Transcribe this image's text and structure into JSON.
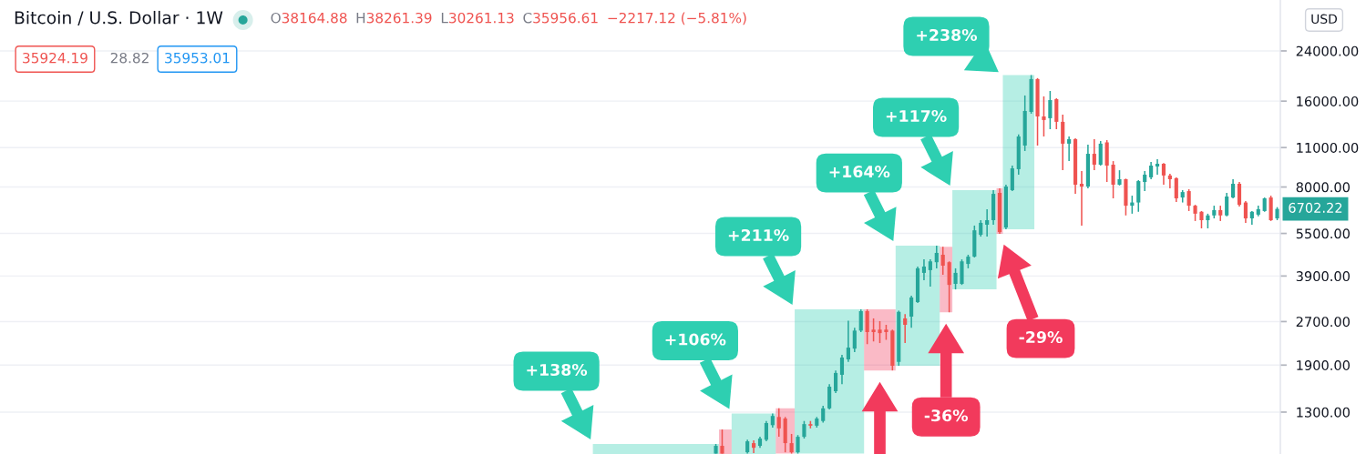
{
  "chart_data": {
    "type": "candlestick",
    "title": "Bitcoin / U.S. Dollar · 1W",
    "annotations": [
      "O38164.88",
      "H38261.39",
      "L30261.13",
      "C35956.61",
      "−2217.12 (−5.81%)",
      "35924.19",
      "28.82",
      "35953.01",
      "USD",
      "6702.22",
      "+138%",
      "+106%",
      "+211%",
      "+164%",
      "-36%",
      "+117%",
      "-29%",
      "+238%"
    ],
    "categories": [
      null,
      null,
      null,
      null,
      null,
      null,
      null,
      null,
      null,
      null,
      null,
      null,
      null,
      null,
      null,
      null,
      null,
      null,
      null,
      null,
      null,
      null,
      null,
      null,
      null,
      null,
      null,
      null,
      null,
      null,
      null,
      null,
      null,
      null,
      null,
      null,
      null,
      null,
      null,
      null,
      null,
      null,
      null,
      null,
      null,
      null,
      null,
      null,
      null,
      null,
      null,
      null,
      null,
      null,
      null,
      null,
      null,
      null,
      null,
      null,
      null,
      null,
      null,
      null,
      null,
      null,
      null,
      null,
      null,
      null,
      null,
      null,
      null,
      null,
      null,
      null,
      null,
      null,
      null,
      null,
      null,
      null,
      null,
      null,
      null,
      null,
      null,
      null,
      null,
      null,
      null,
      null,
      null,
      null,
      null,
      null,
      null,
      null,
      null,
      null,
      null,
      null,
      null,
      null,
      null,
      null,
      null,
      null,
      null,
      null,
      null,
      null,
      null,
      null,
      null,
      null,
      null,
      null,
      null,
      null,
      null,
      null,
      null,
      null,
      null,
      null,
      null,
      null,
      null,
      null,
      null,
      null,
      null,
      null,
      null,
      null,
      null,
      null,
      null,
      null,
      null,
      null,
      null,
      null,
      null,
      null,
      null,
      null,
      null,
      null,
      null,
      null,
      null,
      null,
      null,
      null,
      null,
      null,
      null,
      null,
      null,
      null,
      null,
      null,
      null,
      null,
      null,
      null,
      null,
      null,
      null,
      null,
      null,
      null,
      null,
      null,
      null,
      null,
      null,
      null,
      null,
      null,
      null,
      null,
      null,
      null,
      null,
      null,
      null,
      null,
      null,
      null,
      null,
      null,
      null,
      null,
      null,
      null,
      null,
      null,
      null,
      null,
      null
    ],
    "ohlc": [
      null,
      null,
      null,
      null,
      null,
      null,
      null,
      null,
      null,
      null,
      null,
      null,
      null,
      null,
      null,
      null,
      null,
      null,
      null,
      null,
      null,
      null,
      null,
      null,
      null,
      null,
      null,
      null,
      null,
      null,
      null,
      null,
      null,
      null,
      null,
      null,
      null,
      null,
      null,
      null,
      null,
      null,
      null,
      null,
      null,
      null,
      null,
      null,
      null,
      null,
      null,
      null,
      null,
      null,
      null,
      null,
      null,
      null,
      null,
      null,
      null,
      null,
      null,
      null,
      null,
      null,
      null,
      null,
      null,
      null,
      null,
      null,
      null,
      null,
      null,
      null,
      null,
      null,
      null,
      null,
      null,
      null,
      null,
      null,
      null,
      null,
      null,
      null,
      null,
      null,
      null,
      null,
      null,
      null,
      null,
      null,
      null,
      null,
      null,
      null,
      null,
      null,
      null,
      null,
      null,
      null,
      null,
      null,
      null,
      null,
      null,
      null,
      null,
      [
        930,
        1005,
        930,
        990
      ],
      [
        990,
        1130,
        930,
        930
      ],
      null,
      null,
      null,
      [
        940,
        1040,
        930,
        1027
      ],
      [
        1012,
        1035,
        933,
        975
      ],
      [
        990,
        1065,
        975,
        1050
      ],
      [
        1040,
        1210,
        1027,
        1190
      ],
      [
        1170,
        1285,
        1147,
        1260
      ],
      [
        1250,
        1340,
        1065,
        1140
      ],
      [
        1234,
        1250,
        940,
        1012
      ],
      [
        1012,
        1090,
        930,
        940
      ],
      [
        940,
        1080,
        930,
        1065
      ],
      [
        1065,
        1210,
        1050,
        1180
      ],
      [
        1180,
        1210,
        1140,
        1165
      ],
      [
        1165,
        1250,
        1147,
        1234
      ],
      [
        1210,
        1368,
        1195,
        1340
      ],
      [
        1340,
        1630,
        1328,
        1596
      ],
      [
        1539,
        1820,
        1517,
        1783
      ],
      [
        1757,
        2065,
        1630,
        2020
      ],
      [
        1990,
        2720,
        1950,
        2188
      ],
      [
        2170,
        2570,
        2110,
        2510
      ],
      [
        2510,
        2980,
        2480,
        2937
      ],
      [
        2937,
        2980,
        2250,
        2480
      ],
      [
        2530,
        2770,
        2300,
        2480
      ],
      [
        2530,
        2710,
        2270,
        2460
      ],
      [
        2530,
        2630,
        2330,
        2480
      ],
      [
        2510,
        2530,
        1820,
        1890
      ],
      [
        1950,
        2950,
        1890,
        2920
      ],
      [
        2770,
        2870,
        2270,
        2630
      ],
      [
        2810,
        3330,
        2570,
        3280
      ],
      [
        3160,
        4210,
        3140,
        4150
      ],
      [
        4000,
        4460,
        3770,
        4210
      ],
      [
        4090,
        4460,
        3580,
        4390
      ],
      [
        4360,
        4980,
        4150,
        4700
      ],
      [
        4630,
        4940,
        3940,
        4240
      ],
      [
        4360,
        4390,
        2910,
        3630
      ],
      [
        3660,
        4150,
        3500,
        4000
      ],
      [
        3660,
        4460,
        3630,
        4390
      ],
      [
        4300,
        4630,
        4150,
        4560
      ],
      [
        4560,
        5860,
        4530,
        5640
      ],
      [
        5440,
        6120,
        5360,
        5990
      ],
      [
        5900,
        6690,
        5360,
        6120
      ],
      [
        6120,
        7800,
        5900,
        7570
      ],
      [
        7630,
        7920,
        5480,
        5560
      ],
      [
        5770,
        8150,
        5690,
        8030
      ],
      [
        7800,
        9510,
        7740,
        9300
      ],
      [
        9240,
        12230,
        8840,
        12030
      ],
      [
        11180,
        16750,
        10700,
        14780
      ],
      [
        14670,
        19750,
        14460,
        19120
      ],
      [
        19120,
        19270,
        11180,
        14140
      ],
      [
        14140,
        16630,
        12030,
        13740
      ],
      [
        13940,
        17370,
        12760,
        16140
      ],
      [
        16260,
        16380,
        12760,
        13540
      ],
      [
        13540,
        14350,
        9160,
        11350
      ],
      [
        11350,
        12030,
        9860,
        11770
      ],
      [
        11770,
        11850,
        7570,
        8150
      ],
      [
        8210,
        9100,
        5860,
        8030
      ],
      [
        8030,
        11260,
        7920,
        10460
      ],
      [
        10460,
        11770,
        9160,
        9580
      ],
      [
        9580,
        11600,
        9510,
        11350
      ],
      [
        11470,
        11680,
        8330,
        9510
      ],
      [
        9580,
        9860,
        7300,
        8150
      ],
      [
        8150,
        9160,
        8100,
        8520
      ],
      [
        8520,
        8560,
        6360,
        6880
      ],
      [
        6880,
        7460,
        6450,
        7060
      ],
      [
        7060,
        8460,
        6550,
        8390
      ],
      [
        8330,
        9100,
        7740,
        8840
      ],
      [
        8650,
        9790,
        8520,
        9510
      ],
      [
        9440,
        10010,
        8840,
        9650
      ],
      [
        9650,
        9700,
        8150,
        8780
      ],
      [
        8780,
        8910,
        7920,
        8520
      ],
      [
        8590,
        8650,
        7090,
        7300
      ],
      [
        7350,
        7800,
        7060,
        7680
      ],
      [
        7740,
        7860,
        6590,
        6880
      ],
      [
        6880,
        6930,
        6080,
        6450
      ],
      [
        6550,
        6590,
        5730,
        6120
      ],
      [
        6120,
        6450,
        5730,
        6360
      ],
      [
        6360,
        6880,
        6210,
        6640
      ],
      [
        6640,
        6880,
        6080,
        6360
      ],
      [
        6360,
        7630,
        6310,
        7410
      ],
      [
        7350,
        8520,
        7300,
        8210
      ],
      [
        8210,
        8330,
        6830,
        6930
      ],
      [
        7060,
        7140,
        5990,
        6210
      ],
      [
        6210,
        6590,
        5900,
        6550
      ],
      [
        6400,
        6880,
        6310,
        6690
      ],
      [
        6590,
        7350,
        6550,
        7300
      ],
      [
        7350,
        7460,
        6080,
        6120
      ],
      [
        6210,
        6800,
        6120,
        6702.22
      ]
    ],
    "colors": [
      null,
      null,
      null,
      null,
      null,
      null,
      null,
      null,
      null,
      null,
      null,
      null,
      null,
      null,
      null,
      null,
      null,
      null,
      null,
      null,
      null,
      null,
      null,
      null,
      null,
      null,
      null,
      null,
      null,
      null,
      null,
      null,
      null,
      null,
      null,
      null,
      null,
      null,
      null,
      null,
      null,
      null,
      null,
      null,
      null,
      null,
      null,
      null,
      null,
      null,
      null,
      null,
      null,
      null,
      null,
      null,
      null,
      null,
      null,
      null,
      null,
      null,
      null,
      null,
      null,
      null,
      null,
      null,
      null,
      null,
      null,
      null,
      null,
      null,
      null,
      null,
      null,
      null,
      null,
      null,
      null,
      null,
      null,
      null,
      null,
      null,
      null,
      null,
      null,
      null,
      null,
      null,
      null,
      null,
      null,
      null,
      null,
      null,
      null,
      null,
      null,
      null,
      null,
      null,
      null,
      null,
      null,
      null,
      null,
      null,
      null,
      null,
      null,
      "#26a69a",
      "#ef5350",
      null,
      null,
      null,
      "#26a69a",
      "#ef5350",
      "#26a69a",
      "#26a69a",
      "#26a69a",
      "#ef5350",
      "#ef5350",
      "#ef5350",
      "#26a69a",
      "#26a69a",
      "#ef5350",
      "#26a69a",
      "#26a69a",
      "#26a69a",
      "#26a69a",
      "#26a69a",
      "#26a69a",
      "#26a69a",
      "#26a69a",
      "#ef5350",
      "#ef5350",
      "#ef5350",
      "#ef5350",
      "#ef5350",
      "#26a69a",
      "#ef5350",
      "#26a69a",
      "#26a69a",
      "#26a69a",
      "#26a69a",
      "#26a69a",
      "#ef5350",
      "#ef5350",
      "#26a69a",
      "#26a69a",
      "#26a69a",
      "#26a69a",
      "#26a69a",
      "#26a69a",
      "#26a69a",
      "#ef5350",
      "#26a69a",
      "#26a69a",
      "#26a69a",
      "#26a69a",
      "#26a69a",
      "#ef5350",
      "#ef5350",
      "#26a69a",
      "#ef5350",
      "#ef5350",
      "#26a69a",
      "#ef5350",
      "#ef5350",
      "#26a69a",
      "#ef5350",
      "#26a69a",
      "#ef5350",
      "#ef5350",
      "#26a69a",
      "#ef5350",
      "#26a69a",
      "#26a69a",
      "#26a69a",
      "#26a69a",
      "#26a69a",
      "#ef5350",
      "#ef5350",
      "#ef5350",
      "#26a69a",
      "#ef5350",
      "#ef5350",
      "#ef5350",
      "#26a69a",
      "#26a69a",
      "#ef5350",
      "#26a69a",
      "#26a69a",
      "#ef5350",
      "#ef5350",
      "#26a69a",
      "#26a69a",
      "#26a69a",
      "#ef5350",
      "#26a69a"
    ],
    "ylim": [
      927,
      36200
    ],
    "yticks": [
      {
        "value": 1300,
        "label": "1300.00"
      },
      {
        "value": 1900,
        "label": "1900.00"
      },
      {
        "value": 2700,
        "label": "2700.00"
      },
      {
        "value": 3900,
        "label": "3900.00"
      },
      {
        "value": 5500,
        "label": "5500.00"
      },
      {
        "value": 8000,
        "label": "8000.00"
      },
      {
        "value": 11000,
        "label": "11000.00"
      },
      {
        "value": 16000,
        "label": "16000.00"
      },
      {
        "value": 24000,
        "label": "24000.00"
      }
    ],
    "log": true,
    "grid": "y",
    "tick_labels": "y"
  }
}
